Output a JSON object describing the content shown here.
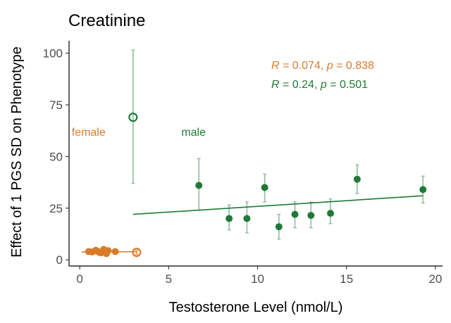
{
  "chart_data": {
    "type": "scatter",
    "title": "Creatinine",
    "xlabel": "Testosterone Level (nmol/L)",
    "ylabel": "Effect of 1 PGS SD on Phenotype",
    "xlim": [
      -0.6,
      20.4
    ],
    "ylim": [
      -3,
      106
    ],
    "x_ticks": [
      0,
      5,
      10,
      15,
      20
    ],
    "y_ticks": [
      0,
      25,
      50,
      75,
      100
    ],
    "x_tick_labels": [
      "0",
      "5",
      "10",
      "15",
      "20"
    ],
    "y_tick_labels": [
      "0",
      "25",
      "50",
      "75",
      "100"
    ],
    "grid": false,
    "colors": {
      "female": "#D97B2B",
      "male": "#1F7A38",
      "male_error": "#8FBF99",
      "female_error": "#E8A36A"
    },
    "group_labels": [
      {
        "text": "female",
        "x": 0.5,
        "y": 62,
        "series": "female"
      },
      {
        "text": "male",
        "x": 6.4,
        "y": 62,
        "series": "male"
      }
    ],
    "annotations": [
      {
        "series": "female",
        "r_label": "R",
        "r_text": " = 0.074, ",
        "p_label": "p",
        "p_text": " = 0.838"
      },
      {
        "series": "male",
        "r_label": "R",
        "r_text": " = 0.24, ",
        "p_label": "p",
        "p_text": " = 0.501"
      }
    ],
    "series": [
      {
        "name": "female",
        "color": "#D97B2B",
        "points": [
          {
            "x": 0.5,
            "y": 4.0,
            "lo": 3.2,
            "hi": 4.8
          },
          {
            "x": 0.7,
            "y": 3.8,
            "lo": 3.0,
            "hi": 4.6
          },
          {
            "x": 0.9,
            "y": 4.6,
            "lo": 3.6,
            "hi": 5.6
          },
          {
            "x": 1.0,
            "y": 4.2,
            "lo": 3.2,
            "hi": 5.2
          },
          {
            "x": 1.1,
            "y": 3.6,
            "lo": 2.6,
            "hi": 4.6
          },
          {
            "x": 1.2,
            "y": 3.4,
            "lo": 2.6,
            "hi": 4.2
          },
          {
            "x": 1.35,
            "y": 5.0,
            "lo": 3.8,
            "hi": 6.2
          },
          {
            "x": 1.5,
            "y": 3.0,
            "lo": 2.2,
            "hi": 3.8
          },
          {
            "x": 1.6,
            "y": 4.4,
            "lo": 3.6,
            "hi": 5.2
          },
          {
            "x": 2.0,
            "y": 4.0,
            "lo": 3.2,
            "hi": 4.8
          }
        ],
        "outlier": {
          "x": 3.2,
          "y": 3.6,
          "lo": 2.6,
          "hi": 4.6
        },
        "fit": {
          "x": [
            0.1,
            3.2
          ],
          "y": [
            3.8,
            3.9
          ]
        }
      },
      {
        "name": "male",
        "color": "#1F7A38",
        "points": [
          {
            "x": 6.7,
            "y": 36.0,
            "lo": 24.0,
            "hi": 49.0
          },
          {
            "x": 8.4,
            "y": 20.0,
            "lo": 14.5,
            "hi": 26.5
          },
          {
            "x": 9.4,
            "y": 20.0,
            "lo": 13.0,
            "hi": 28.0
          },
          {
            "x": 10.4,
            "y": 35.0,
            "lo": 28.0,
            "hi": 41.5
          },
          {
            "x": 11.2,
            "y": 16.0,
            "lo": 10.0,
            "hi": 22.0
          },
          {
            "x": 12.1,
            "y": 22.0,
            "lo": 15.5,
            "hi": 28.0
          },
          {
            "x": 13.0,
            "y": 21.5,
            "lo": 15.5,
            "hi": 28.0
          },
          {
            "x": 14.1,
            "y": 22.5,
            "lo": 17.5,
            "hi": 29.5
          },
          {
            "x": 15.6,
            "y": 39.0,
            "lo": 32.0,
            "hi": 46.0
          },
          {
            "x": 19.3,
            "y": 34.0,
            "lo": 27.5,
            "hi": 40.5
          }
        ],
        "outlier": {
          "x": 3.0,
          "y": 69.0,
          "lo": 37.0,
          "hi": 101.5
        },
        "fit": {
          "x": [
            3.0,
            19.3
          ],
          "y": [
            22.0,
            31.0
          ]
        }
      }
    ]
  }
}
